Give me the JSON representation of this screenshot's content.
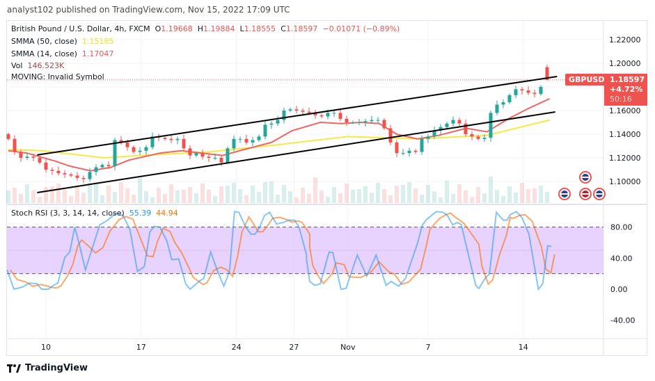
{
  "header": {
    "published": "analyst102 published on TradingView.com, Nov 15, 2022 17:09 UTC"
  },
  "legend": {
    "symbol": "British Pound / U.S. Dollar, 4h, FXCM",
    "o_label": "O",
    "o": "1.19668",
    "h_label": "H",
    "h": "1.19884",
    "l_label": "L",
    "l": "1.18555",
    "c_label": "C",
    "c": "1.18597",
    "change": "−0.01071 (−0.89%)",
    "smma50_label": "SMMA (50, close)",
    "smma50": "1.15185",
    "smma14_label": "SMMA (14, close)",
    "smma14": "1.17047",
    "vol_label": "Vol",
    "vol": "146.523K",
    "moving": "MOVING: Invalid Symbol",
    "stoch_label": "Stoch RSI (3, 3, 14, 14, close)",
    "stoch_k": "55.39",
    "stoch_d": "44.94"
  },
  "price_tag": {
    "symbol": "GBPUSD",
    "price": "1.18597",
    "change": "+4.72%",
    "countdown": "50:16"
  },
  "footer": {
    "brand": "TradingView"
  },
  "colors": {
    "up": "#26a69a",
    "down": "#ef5350",
    "smma50": "#f7e62a",
    "smma14": "#ef5350",
    "stoch_k": "#2196f3",
    "stoch_d": "#ff6d00",
    "band": "#e1c8fd",
    "channel": "#000000"
  },
  "chart_data": {
    "type": "candlestick",
    "price_axis": {
      "ticks": [
        "1.22000",
        "1.20000",
        "1.16000",
        "1.14000",
        "1.12000",
        "1.10000"
      ],
      "range": [
        1.087,
        1.237
      ]
    },
    "time_axis": {
      "ticks": [
        {
          "label": "10",
          "bar": 6
        },
        {
          "label": "17",
          "bar": 21.2
        },
        {
          "label": "24",
          "bar": 36.4
        },
        {
          "label": "27",
          "bar": 45.6
        },
        {
          "label": "Nov",
          "bar": 54.2
        },
        {
          "label": "7",
          "bar": 67
        },
        {
          "label": "14",
          "bar": 82.2
        }
      ]
    },
    "closes": [
      1.136,
      1.125,
      1.12,
      1.121,
      1.12,
      1.116,
      1.11,
      1.109,
      1.107,
      1.106,
      1.105,
      1.103,
      1.102,
      1.108,
      1.112,
      1.114,
      1.113,
      1.135,
      1.133,
      1.129,
      1.125,
      1.126,
      1.129,
      1.138,
      1.137,
      1.136,
      1.135,
      1.136,
      1.128,
      1.122,
      1.124,
      1.121,
      1.12,
      1.12,
      1.116,
      1.128,
      1.136,
      1.136,
      1.133,
      1.135,
      1.138,
      1.148,
      1.149,
      1.152,
      1.16,
      1.161,
      1.16,
      1.159,
      1.158,
      1.156,
      1.155,
      1.158,
      1.158,
      1.153,
      1.15,
      1.15,
      1.15,
      1.151,
      1.152,
      1.152,
      1.145,
      1.133,
      1.124,
      1.124,
      1.126,
      1.125,
      1.136,
      1.138,
      1.143,
      1.146,
      1.149,
      1.152,
      1.149,
      1.14,
      1.138,
      1.136,
      1.137,
      1.158,
      1.165,
      1.167,
      1.173,
      1.178,
      1.177,
      1.175,
      1.174,
      1.18,
      1.19668
    ],
    "last_candle": {
      "o": 1.19668,
      "h": 1.19884,
      "l": 1.18555,
      "c": 1.18597
    },
    "smma50": [
      [
        0,
        1.127
      ],
      [
        5.3,
        1.126
      ],
      [
        15.3,
        1.12
      ],
      [
        21,
        1.122
      ],
      [
        32,
        1.125
      ],
      [
        43,
        1.131
      ],
      [
        54.2,
        1.138
      ],
      [
        65.3,
        1.136
      ],
      [
        76.4,
        1.139
      ],
      [
        86.4,
        1.152
      ]
    ],
    "smma14": [
      [
        0,
        1.126
      ],
      [
        3,
        1.124
      ],
      [
        7.6,
        1.117
      ],
      [
        9.8,
        1.113
      ],
      [
        13.1,
        1.109
      ],
      [
        16.4,
        1.112
      ],
      [
        19.2,
        1.118
      ],
      [
        24.2,
        1.124
      ],
      [
        27.6,
        1.126
      ],
      [
        30.9,
        1.124
      ],
      [
        34.2,
        1.122
      ],
      [
        37.6,
        1.127
      ],
      [
        42,
        1.133
      ],
      [
        45.3,
        1.143
      ],
      [
        49.8,
        1.15
      ],
      [
        53.1,
        1.149
      ],
      [
        56.4,
        1.15
      ],
      [
        59.2,
        1.149
      ],
      [
        62,
        1.14
      ],
      [
        65.3,
        1.136
      ],
      [
        68.7,
        1.139
      ],
      [
        73.1,
        1.145
      ],
      [
        76.4,
        1.142
      ],
      [
        79.8,
        1.153
      ],
      [
        83.1,
        1.162
      ],
      [
        86.4,
        1.17
      ]
    ],
    "channel": {
      "upper": [
        [
          4.6,
          1.1224
        ],
        [
          87.6,
          1.1888
        ]
      ],
      "lower": [
        [
          4.6,
          1.0906
        ],
        [
          87.3,
          1.1588
        ]
      ]
    },
    "stoch_rsi": {
      "axis_ticks": [
        "80.00",
        "40.00",
        "0.00",
        "-40.00"
      ],
      "range": [
        -50,
        110
      ],
      "bands": [
        20,
        80
      ],
      "k": [
        [
          -0.2,
          25
        ],
        [
          0.9,
          0
        ],
        [
          2.3,
          3
        ],
        [
          3.4,
          8
        ],
        [
          4.6,
          7
        ],
        [
          5.3,
          0
        ],
        [
          6.4,
          0
        ],
        [
          7.2,
          5
        ],
        [
          7.9,
          8
        ],
        [
          9,
          41
        ],
        [
          9.8,
          48
        ],
        [
          10.6,
          80
        ],
        [
          11.2,
          62
        ],
        [
          12.3,
          25
        ],
        [
          13.4,
          53
        ],
        [
          14.6,
          83
        ],
        [
          15.7,
          88
        ],
        [
          17.2,
          98
        ],
        [
          18.3,
          95
        ],
        [
          19.4,
          77
        ],
        [
          20.6,
          23
        ],
        [
          21.7,
          29
        ],
        [
          22.6,
          74
        ],
        [
          23.3,
          81
        ],
        [
          24.2,
          80
        ],
        [
          25.3,
          62
        ],
        [
          26.1,
          38
        ],
        [
          27.2,
          39
        ],
        [
          28.3,
          7
        ],
        [
          29,
          0
        ],
        [
          30.6,
          11
        ],
        [
          31.2,
          14
        ],
        [
          32.3,
          48
        ],
        [
          33.4,
          23
        ],
        [
          34.4,
          4
        ],
        [
          35.3,
          23
        ],
        [
          36.1,
          100
        ],
        [
          36.8,
          99
        ],
        [
          37.9,
          80
        ],
        [
          38.7,
          71
        ],
        [
          39.4,
          71
        ],
        [
          40.1,
          80
        ],
        [
          40.9,
          95
        ],
        [
          41.7,
          99
        ],
        [
          42.8,
          84
        ],
        [
          43.9,
          86
        ],
        [
          44.8,
          89
        ],
        [
          45.7,
          89
        ],
        [
          46.4,
          80
        ],
        [
          47.6,
          44
        ],
        [
          47.6,
          38
        ],
        [
          48.1,
          10
        ],
        [
          48.9,
          5
        ],
        [
          49.8,
          7
        ],
        [
          51.2,
          48
        ],
        [
          51.8,
          47
        ],
        [
          53.1,
          0
        ],
        [
          53.9,
          1
        ],
        [
          55.7,
          44
        ],
        [
          57.2,
          17
        ],
        [
          58.7,
          44
        ],
        [
          60.3,
          5
        ],
        [
          61.1,
          10
        ],
        [
          62.3,
          4
        ],
        [
          63.4,
          14
        ],
        [
          65.3,
          59
        ],
        [
          66.1,
          83
        ],
        [
          66.8,
          90
        ],
        [
          68.3,
          100
        ],
        [
          69.4,
          99
        ],
        [
          70.1,
          95
        ],
        [
          70.9,
          83
        ],
        [
          71.7,
          86
        ],
        [
          72.3,
          83
        ],
        [
          74.6,
          5
        ],
        [
          75.1,
          1
        ],
        [
          76.1,
          14
        ],
        [
          76.8,
          20
        ],
        [
          77.9,
          99
        ],
        [
          79,
          89
        ],
        [
          79.6,
          89
        ],
        [
          80.1,
          96
        ],
        [
          81.1,
          100
        ],
        [
          82,
          92
        ],
        [
          83.1,
          71
        ],
        [
          84.6,
          0
        ],
        [
          85.3,
          7
        ],
        [
          86.1,
          56
        ],
        [
          86.7,
          55
        ]
      ],
      "d_last": 44.94
    }
  }
}
